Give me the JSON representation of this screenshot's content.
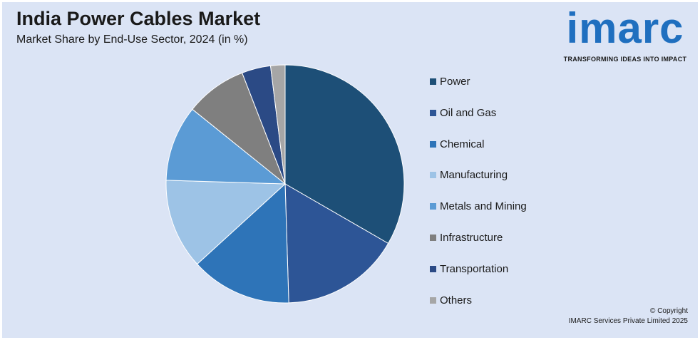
{
  "chart_data": {
    "type": "pie",
    "title": "India Power Cables Market",
    "subtitle": "Market Share by End-Use Sector, 2024 (in %)",
    "slices": [
      {
        "label": "Power",
        "value": 34.0,
        "color": "#1d4f77"
      },
      {
        "label": "Oil and Gas",
        "value": 16.5,
        "color": "#2d5596"
      },
      {
        "label": "Chemical",
        "value": 14.0,
        "color": "#2e74b8"
      },
      {
        "label": "Manufacturing",
        "value": 12.5,
        "color": "#9dc3e6"
      },
      {
        "label": "Metals and Mining",
        "value": 10.5,
        "color": "#5b9bd5"
      },
      {
        "label": "Infrastructure",
        "value": 8.5,
        "color": "#7f7f7f"
      },
      {
        "label": "Transportation",
        "value": 4.0,
        "color": "#2b4a85"
      },
      {
        "label": "Others",
        "value": 2.0,
        "color": "#a6a6a6"
      }
    ],
    "legend_position": "right"
  },
  "logo": {
    "word": "imarc",
    "tagline": "TRANSFORMING IDEAS INTO IMPACT"
  },
  "footer": {
    "copyright": "© Copyright",
    "company": "IMARC Services Private Limited 2025"
  }
}
